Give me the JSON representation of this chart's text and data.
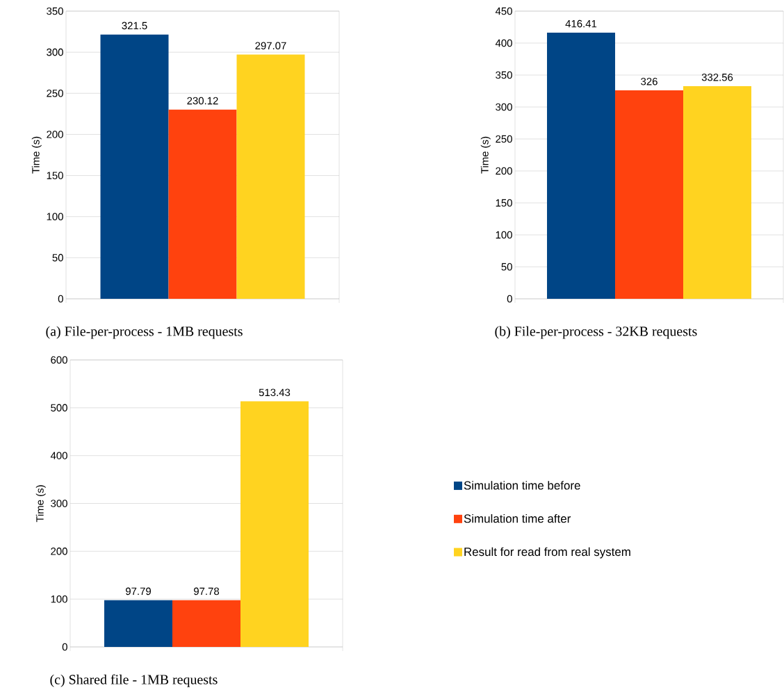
{
  "chart_data": [
    {
      "type": "bar",
      "title": "(a) File-per-process - 1MB requests",
      "ylabel": "Time (s)",
      "categories": [
        null
      ],
      "series": [
        {
          "color": "#004586",
          "values": [
            321.5
          ]
        },
        {
          "color": "#ff420e",
          "values": [
            230.12
          ]
        },
        {
          "color": "#ffd320",
          "values": [
            297.07
          ]
        }
      ],
      "ylim": [
        0,
        350
      ],
      "yticks": [
        0,
        50,
        100,
        150,
        200,
        250,
        300,
        350
      ],
      "grid": "y",
      "data_labels": true
    },
    {
      "type": "bar",
      "title": "(b) File-per-process - 32KB requests",
      "ylabel": "Time (s)",
      "categories": [
        null
      ],
      "series": [
        {
          "color": "#004586",
          "values": [
            416.41
          ]
        },
        {
          "color": "#ff420e",
          "values": [
            326
          ]
        },
        {
          "color": "#ffd320",
          "values": [
            332.56
          ]
        }
      ],
      "ylim": [
        0,
        450
      ],
      "yticks": [
        0,
        50,
        100,
        150,
        200,
        250,
        300,
        350,
        400,
        450
      ],
      "grid": "y",
      "data_labels": true
    },
    {
      "type": "bar",
      "title": "(c) Shared file - 1MB requests",
      "ylabel": "Time (s)",
      "categories": [
        null
      ],
      "series": [
        {
          "name": "Simulation time before",
          "color": "#004586",
          "values": [
            97.79
          ]
        },
        {
          "name": "Simulation time after",
          "color": "#ff420e",
          "values": [
            97.78
          ]
        },
        {
          "name": "Result for read from real system",
          "color": "#ffd320",
          "values": [
            513.43
          ]
        }
      ],
      "ylim": [
        0,
        600
      ],
      "yticks": [
        0,
        100,
        200,
        300,
        400,
        500,
        600
      ],
      "grid": "y",
      "data_labels": true,
      "legend": "right"
    }
  ]
}
